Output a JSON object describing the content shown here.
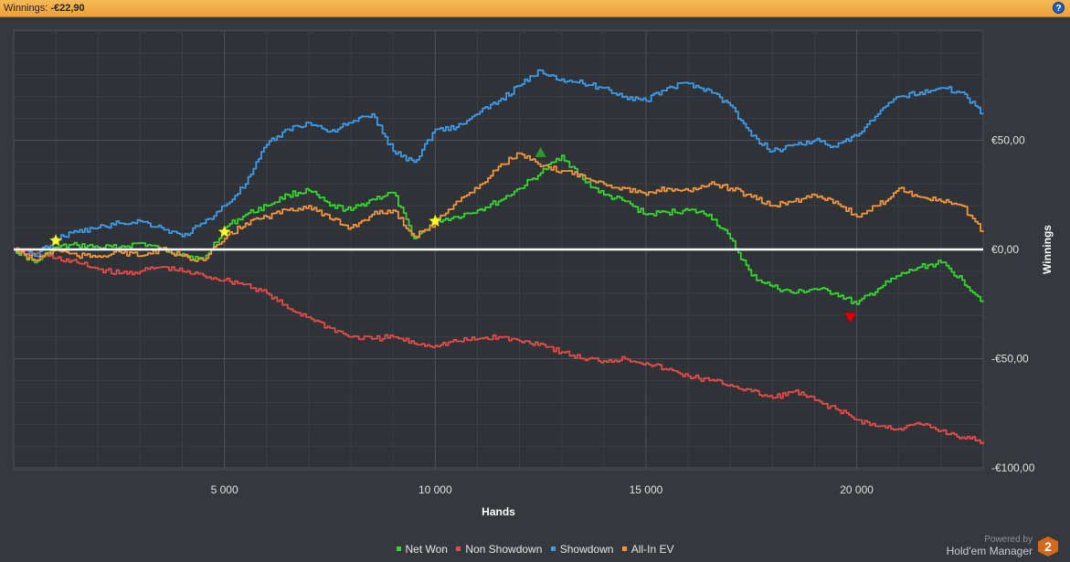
{
  "header": {
    "label": "Winnings:",
    "value": "-€22,90",
    "help_icon": "help-icon"
  },
  "chart_data": {
    "type": "line",
    "xlabel": "Hands",
    "ylabel": "Winnings",
    "xlim": [
      0,
      23000
    ],
    "ylim": [
      -100,
      100
    ],
    "x_ticks": [
      5000,
      10000,
      15000,
      20000
    ],
    "x_tick_labels": [
      "5 000",
      "10 000",
      "15 000",
      "20 000"
    ],
    "y_ticks": [
      50,
      0,
      -50,
      -100
    ],
    "y_tick_labels": [
      "€50,00",
      "€0,00",
      "-€50,00",
      "-€100,00"
    ],
    "grid": true,
    "legend_position": "bottom",
    "series": [
      {
        "name": "Net Won",
        "color": "#35d630",
        "x": [
          0,
          500,
          1000,
          1500,
          2000,
          2500,
          3000,
          3500,
          4000,
          4500,
          5000,
          5500,
          6000,
          6500,
          7000,
          7500,
          8000,
          8500,
          9000,
          9500,
          10000,
          10500,
          11000,
          11500,
          12000,
          12500,
          13000,
          13500,
          14000,
          14500,
          15000,
          15500,
          16000,
          16500,
          17000,
          17500,
          18000,
          18500,
          19000,
          19500,
          20000,
          20500,
          21000,
          21500,
          22000,
          22500,
          23000
        ],
        "y": [
          0,
          -6,
          1,
          2,
          1,
          1,
          3,
          0,
          -2,
          -5,
          10,
          16,
          20,
          25,
          27,
          20,
          18,
          23,
          26,
          5,
          13,
          15,
          18,
          22,
          28,
          35,
          43,
          32,
          25,
          22,
          16,
          17,
          18,
          16,
          5,
          -12,
          -17,
          -20,
          -18,
          -20,
          -25,
          -18,
          -12,
          -8,
          -6,
          -14,
          -24
        ]
      },
      {
        "name": "Non Showdown",
        "color": "#e64b47",
        "x": [
          0,
          500,
          1000,
          1500,
          2000,
          2500,
          3000,
          3500,
          4000,
          4500,
          5000,
          5500,
          6000,
          6500,
          7000,
          7500,
          8000,
          8500,
          9000,
          9500,
          10000,
          10500,
          11000,
          11500,
          12000,
          12500,
          13000,
          13500,
          14000,
          14500,
          15000,
          15500,
          16000,
          16500,
          17000,
          17500,
          18000,
          18500,
          19000,
          19500,
          20000,
          20500,
          21000,
          21500,
          22000,
          22500,
          23000
        ],
        "y": [
          0,
          -2,
          -4,
          -6,
          -9,
          -11,
          -10,
          -8,
          -10,
          -12,
          -14,
          -16,
          -20,
          -27,
          -31,
          -36,
          -40,
          -41,
          -40,
          -43,
          -44,
          -42,
          -41,
          -40,
          -42,
          -43,
          -47,
          -50,
          -51,
          -50,
          -52,
          -55,
          -58,
          -60,
          -62,
          -65,
          -68,
          -65,
          -69,
          -73,
          -78,
          -81,
          -82,
          -80,
          -83,
          -86,
          -88
        ]
      },
      {
        "name": "Showdown",
        "color": "#3d9be9",
        "x": [
          0,
          500,
          1000,
          1500,
          2000,
          2500,
          3000,
          3500,
          4000,
          4500,
          5000,
          5500,
          6000,
          6500,
          7000,
          7500,
          8000,
          8500,
          9000,
          9500,
          10000,
          10500,
          11000,
          11500,
          12000,
          12500,
          13000,
          13500,
          14000,
          14500,
          15000,
          15500,
          16000,
          16500,
          17000,
          17500,
          18000,
          18500,
          19000,
          19500,
          20000,
          20500,
          21000,
          21500,
          22000,
          22500,
          23000
        ],
        "y": [
          0,
          -3,
          5,
          8,
          10,
          12,
          13,
          10,
          6,
          12,
          20,
          30,
          48,
          55,
          58,
          54,
          58,
          62,
          45,
          40,
          55,
          56,
          62,
          68,
          75,
          82,
          78,
          76,
          74,
          70,
          68,
          74,
          76,
          73,
          66,
          52,
          45,
          48,
          50,
          47,
          52,
          62,
          70,
          72,
          74,
          72,
          62
        ]
      },
      {
        "name": "All-In EV",
        "color": "#f4953c",
        "x": [
          0,
          500,
          1000,
          1500,
          2000,
          2500,
          3000,
          3500,
          4000,
          4500,
          5000,
          5500,
          6000,
          6500,
          7000,
          7500,
          8000,
          8500,
          9000,
          9500,
          10000,
          10500,
          11000,
          11500,
          12000,
          12500,
          13000,
          13500,
          14000,
          14500,
          15000,
          15500,
          16000,
          16500,
          17000,
          17500,
          18000,
          18500,
          19000,
          19500,
          20000,
          20500,
          21000,
          21500,
          22000,
          22500,
          23000
        ],
        "y": [
          0,
          -5,
          0,
          -3,
          -3,
          -1,
          -3,
          0,
          -3,
          -5,
          5,
          12,
          15,
          18,
          20,
          14,
          10,
          16,
          18,
          6,
          12,
          22,
          28,
          38,
          44,
          38,
          36,
          34,
          30,
          28,
          25,
          28,
          27,
          30,
          28,
          24,
          20,
          22,
          25,
          22,
          15,
          20,
          28,
          24,
          22,
          20,
          8
        ]
      }
    ],
    "markers": [
      {
        "type": "star",
        "x": 1000,
        "y": 4,
        "color": "#ffff33"
      },
      {
        "type": "star",
        "x": 5000,
        "y": 8,
        "color": "#ffff33"
      },
      {
        "type": "star",
        "x": 10000,
        "y": 13,
        "color": "#ffff33"
      },
      {
        "type": "triangle-up",
        "x": 12500,
        "y": 44,
        "color": "#2b9a2b"
      },
      {
        "type": "triangle-down",
        "x": 19850,
        "y": -31,
        "color": "#e00000"
      }
    ]
  },
  "legend": {
    "items": [
      {
        "label": "Net Won",
        "color": "#35d630"
      },
      {
        "label": "Non Showdown",
        "color": "#e64b47"
      },
      {
        "label": "Showdown",
        "color": "#3d9be9"
      },
      {
        "label": "All-In EV",
        "color": "#f4953c"
      }
    ]
  },
  "footer": {
    "powered_by": "Powered by",
    "brand": "Hold'em Manager",
    "logo_text": "2"
  }
}
